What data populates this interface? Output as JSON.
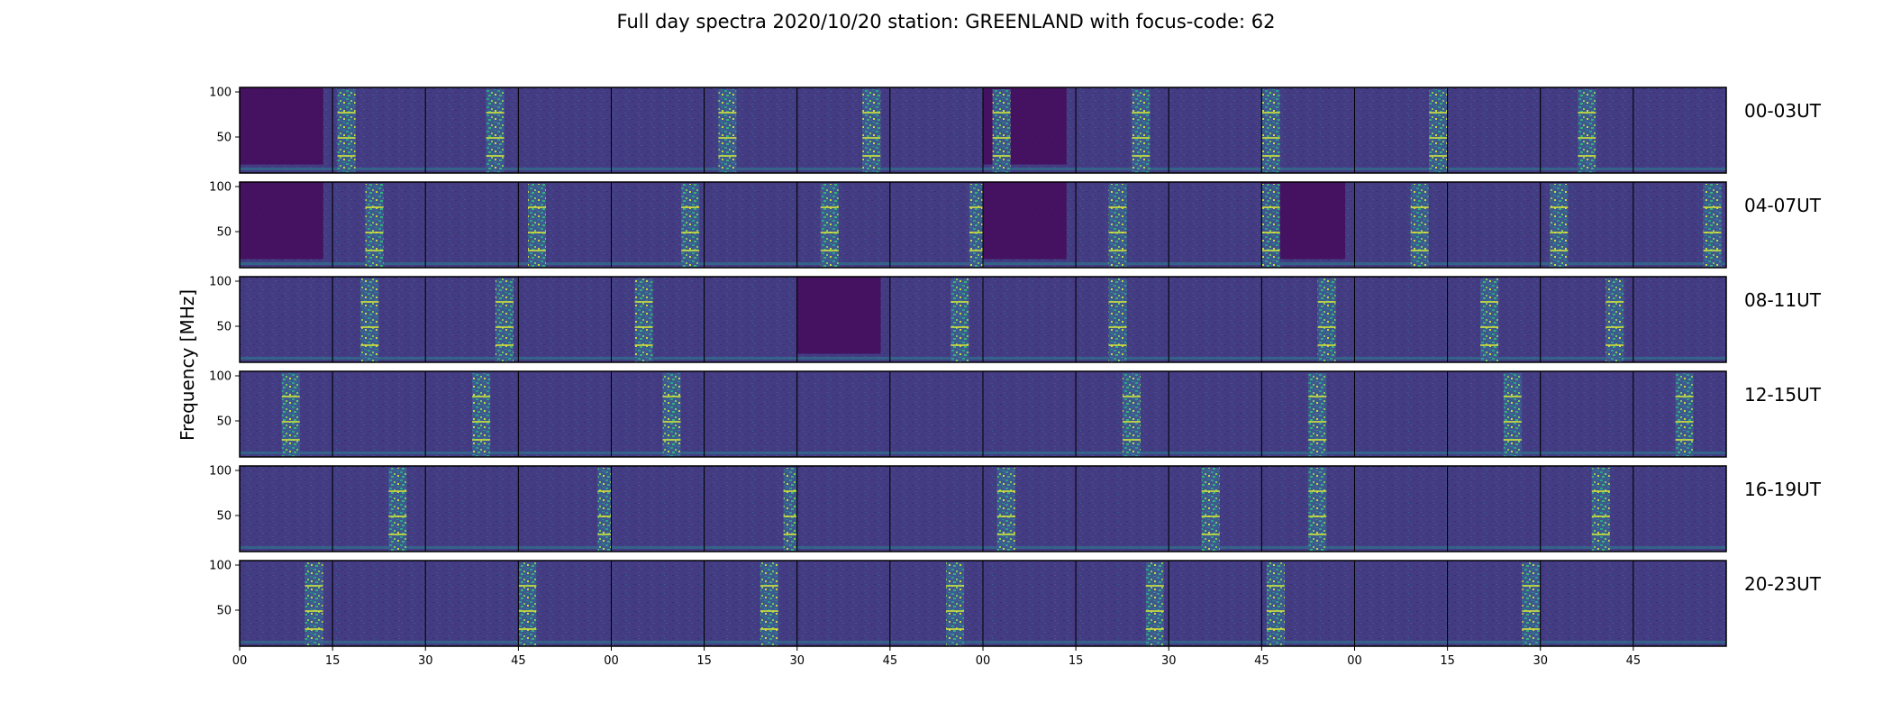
{
  "chart_data": {
    "type": "heatmap",
    "title": "Full day spectra 2020/10/20 station: GREENLAND with focus-code: 62",
    "ylabel": "Frequency [MHz]",
    "xlabel": "",
    "yticks": [
      "100",
      "50"
    ],
    "y_range_mhz": [
      10,
      105
    ],
    "xticks": [
      "00",
      "15",
      "30",
      "45",
      "00",
      "15",
      "30",
      "45",
      "00",
      "15",
      "30",
      "45",
      "00",
      "15",
      "30",
      "45"
    ],
    "colormap": "viridis",
    "panels_per_row": 16,
    "panel_minutes": 15,
    "rows": [
      {
        "label": "00-03UT",
        "burst_positions": [
          0,
          0.15,
          0.75,
          0,
          0,
          0.25,
          0.8,
          0,
          0.2,
          0.7,
          0,
          0.1,
          0.9,
          0,
          0.5,
          0
        ],
        "dark_panels": [
          0,
          8
        ]
      },
      {
        "label": "04-07UT",
        "burst_positions": [
          0,
          0.45,
          0,
          0.2,
          0.85,
          0,
          0.35,
          0.95,
          0,
          0.45,
          0,
          0.1,
          0.7,
          0,
          0.2,
          0.85
        ],
        "dark_panels": [
          0,
          8,
          11
        ]
      },
      {
        "label": "08-11UT",
        "burst_positions": [
          0,
          0.4,
          0.85,
          0,
          0.35,
          0,
          0,
          0.75,
          0,
          0.45,
          0,
          0.7,
          0,
          0.45,
          0.8,
          0
        ],
        "dark_panels": [
          6
        ]
      },
      {
        "label": "12-15UT",
        "burst_positions": [
          0.55,
          0,
          0.6,
          0,
          0.65,
          0,
          0,
          0,
          0,
          0.6,
          0,
          0.6,
          0,
          0.7,
          0,
          0.55
        ],
        "dark_panels": []
      },
      {
        "label": "16-19UT",
        "burst_positions": [
          0,
          0.7,
          0,
          0.95,
          0,
          0.95,
          0,
          0,
          0.25,
          0,
          0.45,
          0.6,
          0,
          0,
          0.65,
          0
        ],
        "dark_panels": []
      },
      {
        "label": "20-23UT",
        "burst_positions": [
          0.8,
          0,
          0,
          0.05,
          0,
          0.7,
          0,
          0.7,
          0,
          0.85,
          0,
          0.15,
          0,
          0.9,
          0,
          0
        ],
        "dark_panels": []
      }
    ]
  }
}
